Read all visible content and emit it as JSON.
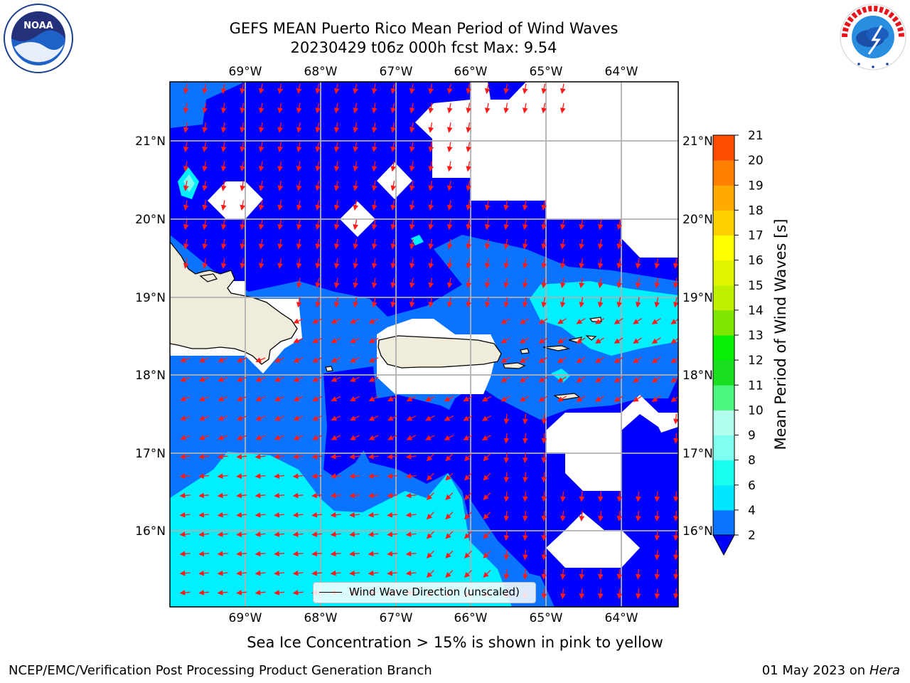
{
  "header": {
    "title_line1": "GEFS MEAN Puerto Rico Mean Period of Wind Waves",
    "title_line2": "20230429 t06z 000h fcst   Max: 9.54"
  },
  "logos": {
    "left": {
      "icon": "noaa-logo",
      "text": "NOAA"
    },
    "right": {
      "icon": "nws-logo",
      "text": "NATIONAL WEATHER SERVICE"
    }
  },
  "map": {
    "lon_labels": [
      "69°W",
      "68°W",
      "67°W",
      "66°W",
      "65°W",
      "64°W"
    ],
    "lat_labels": [
      "21°N",
      "20°N",
      "19°N",
      "18°N",
      "17°N",
      "16°N"
    ],
    "land_color": "#efecdc",
    "arrow_color": "#ff1a1a",
    "legend_label": "Wind Wave Direction (unscaled)"
  },
  "colorbar": {
    "label": "Mean Period of Wind Waves [s]",
    "ticks": [
      "2",
      "4",
      "6",
      "8",
      "9",
      "10",
      "11",
      "12",
      "13",
      "14",
      "15",
      "16",
      "17",
      "18",
      "19",
      "20",
      "21"
    ],
    "colors": [
      "#0a73ff",
      "#00e6ff",
      "#1afff0",
      "#80fff0",
      "#b3ffee",
      "#4cf580",
      "#1adf20",
      "#05f005",
      "#7fe600",
      "#bff000",
      "#e0f500",
      "#ffff00",
      "#ffd000",
      "#ffaa00",
      "#ff8000",
      "#ff4d00",
      "#ff1a00",
      "#ff0000"
    ],
    "under_color": "#0000ff"
  },
  "subtitle": "Sea Ice Concentration > 15% is shown in pink to yellow",
  "footer": {
    "left": "NCEP/EMC/Verification Post Processing Product Generation Branch",
    "right_date": "01 May 2023 on",
    "right_host": "Hera"
  }
}
